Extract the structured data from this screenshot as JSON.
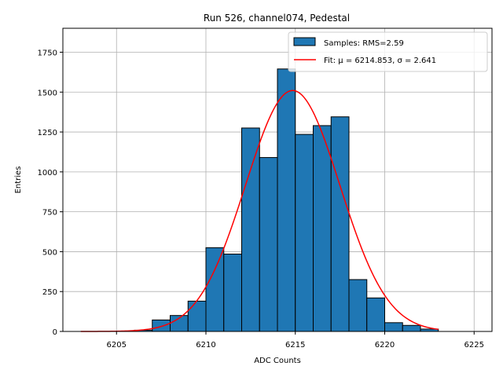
{
  "chart_data": {
    "type": "bar",
    "title": "Run 526, channel074, Pedestal",
    "xlabel": "ADC Counts",
    "ylabel": "Entries",
    "xlim": [
      6202.0,
      6226.0
    ],
    "ylim": [
      0,
      1900
    ],
    "xticks": [
      6205,
      6210,
      6215,
      6220,
      6225
    ],
    "yticks": [
      0,
      250,
      500,
      750,
      1000,
      1250,
      1500,
      1750
    ],
    "grid": true,
    "legend_position": "top-right",
    "bin_width": 1,
    "bins": [
      {
        "left": 6206,
        "value": 8
      },
      {
        "left": 6207,
        "value": 72
      },
      {
        "left": 6208,
        "value": 100
      },
      {
        "left": 6209,
        "value": 190
      },
      {
        "left": 6210,
        "value": 525
      },
      {
        "left": 6211,
        "value": 485
      },
      {
        "left": 6212,
        "value": 1275
      },
      {
        "left": 6213,
        "value": 1090
      },
      {
        "left": 6214,
        "value": 1645
      },
      {
        "left": 6215,
        "value": 1235
      },
      {
        "left": 6216,
        "value": 1290
      },
      {
        "left": 6217,
        "value": 1345
      },
      {
        "left": 6218,
        "value": 325
      },
      {
        "left": 6219,
        "value": 210
      },
      {
        "left": 6220,
        "value": 55
      },
      {
        "left": 6221,
        "value": 38
      },
      {
        "left": 6222,
        "value": 15
      }
    ],
    "fit": {
      "mu": 6214.853,
      "sigma": 2.641,
      "amplitude": 1510,
      "range": [
        6203,
        6223
      ]
    },
    "series": [
      {
        "name": "Samples: RMS=2.59",
        "type": "histogram",
        "color": "#1f77b4"
      },
      {
        "name": "Fit: μ = 6214.853, σ = 2.641",
        "type": "line",
        "color": "#ff0000"
      }
    ]
  }
}
